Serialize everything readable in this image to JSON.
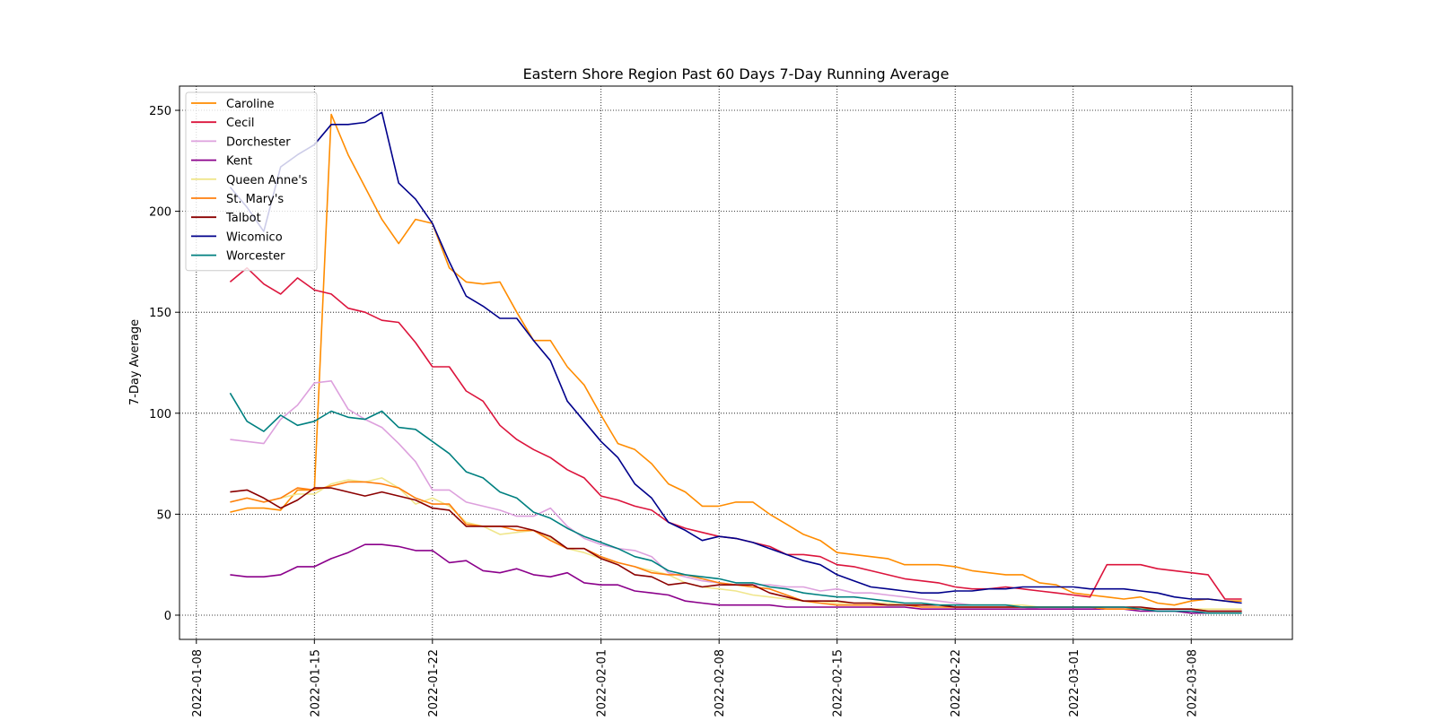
{
  "chart_data": {
    "type": "line",
    "title": "Eastern Shore Region Past 60 Days 7-Day Running Average",
    "xlabel": "",
    "ylabel": "7-Day Average",
    "x_start": "2022-01-10",
    "x_end": "2022-03-10",
    "xlim": [
      "2022-01-07",
      "2022-03-14"
    ],
    "ylim": [
      -12,
      262
    ],
    "xticks": [
      "2022-01-08",
      "2022-01-15",
      "2022-01-22",
      "2022-02-01",
      "2022-02-08",
      "2022-02-15",
      "2022-02-22",
      "2022-03-01",
      "2022-03-08"
    ],
    "yticks": [
      0,
      50,
      100,
      150,
      200,
      250
    ],
    "grid": "dotted",
    "legend_position": "top-left",
    "series": [
      {
        "name": "Caroline",
        "color": "#ff8c00",
        "values": [
          51,
          53,
          53,
          52,
          62,
          62,
          248,
          228,
          212,
          196,
          184,
          196,
          194,
          172,
          165,
          164,
          165,
          150,
          136,
          136,
          123,
          114,
          99,
          85,
          82,
          75,
          65,
          61,
          54,
          54,
          56,
          56,
          50,
          45,
          40,
          37,
          31,
          30,
          29,
          28,
          25,
          25,
          25,
          24,
          22,
          21,
          20,
          20,
          16,
          15,
          11,
          10,
          9,
          8,
          9,
          6,
          5,
          7,
          8,
          7,
          7
        ]
      },
      {
        "name": "Cecil",
        "color": "#dc143c",
        "values": [
          165,
          172,
          164,
          159,
          167,
          161,
          159,
          152,
          150,
          146,
          145,
          135,
          123,
          123,
          111,
          106,
          94,
          87,
          82,
          78,
          72,
          68,
          59,
          57,
          54,
          52,
          46,
          43,
          41,
          39,
          38,
          36,
          34,
          30,
          30,
          29,
          25,
          24,
          22,
          20,
          18,
          17,
          16,
          14,
          13,
          13,
          14,
          13,
          12,
          11,
          10,
          9,
          25,
          25,
          25,
          23,
          22,
          21,
          20,
          8,
          8
        ]
      },
      {
        "name": "Dorchester",
        "color": "#dda0dd",
        "values": [
          87,
          86,
          85,
          97,
          104,
          115,
          116,
          102,
          97,
          93,
          85,
          76,
          62,
          62,
          56,
          54,
          52,
          49,
          49,
          53,
          44,
          38,
          35,
          33,
          32,
          29,
          21,
          19,
          17,
          16,
          15,
          15,
          15,
          14,
          14,
          12,
          13,
          11,
          11,
          10,
          9,
          8,
          7,
          6,
          5,
          5,
          5,
          4,
          3,
          3,
          3,
          3,
          3,
          3,
          3,
          2,
          2,
          2,
          2,
          2,
          2
        ]
      },
      {
        "name": "Kent",
        "color": "#8b008b",
        "values": [
          20,
          19,
          19,
          20,
          24,
          24,
          28,
          31,
          35,
          35,
          34,
          32,
          32,
          26,
          27,
          22,
          21,
          23,
          20,
          19,
          21,
          16,
          15,
          15,
          12,
          11,
          10,
          7,
          6,
          5,
          5,
          5,
          5,
          4,
          4,
          4,
          4,
          4,
          4,
          4,
          4,
          3,
          3,
          3,
          3,
          3,
          3,
          3,
          3,
          3,
          3,
          3,
          3,
          3,
          2,
          2,
          2,
          1,
          1,
          1,
          1
        ]
      },
      {
        "name": "Queen Anne's",
        "color": "#f0e68c",
        "values": [
          56,
          58,
          56,
          58,
          60,
          60,
          65,
          67,
          66,
          68,
          63,
          55,
          58,
          54,
          46,
          44,
          40,
          41,
          42,
          38,
          33,
          31,
          28,
          26,
          24,
          22,
          20,
          16,
          14,
          13,
          12,
          10,
          9,
          8,
          7,
          7,
          6,
          6,
          6,
          6,
          5,
          5,
          5,
          5,
          5,
          5,
          5,
          5,
          4,
          4,
          4,
          4,
          3,
          3,
          3,
          3,
          3,
          3,
          3,
          3,
          3
        ]
      },
      {
        "name": "St. Mary's",
        "color": "#ff7f0e",
        "values": [
          56,
          58,
          56,
          58,
          63,
          62,
          64,
          66,
          66,
          65,
          63,
          58,
          55,
          55,
          45,
          44,
          44,
          42,
          42,
          37,
          33,
          33,
          29,
          26,
          24,
          21,
          20,
          20,
          18,
          16,
          15,
          14,
          13,
          10,
          7,
          6,
          5,
          5,
          5,
          5,
          5,
          4,
          4,
          4,
          4,
          4,
          4,
          4,
          4,
          4,
          4,
          4,
          3,
          3,
          3,
          3,
          3,
          3,
          2,
          2,
          2
        ]
      },
      {
        "name": "Talbot",
        "color": "#8b0000",
        "values": [
          61,
          62,
          58,
          53,
          57,
          63,
          63,
          61,
          59,
          61,
          59,
          57,
          53,
          52,
          44,
          44,
          44,
          44,
          42,
          39,
          33,
          33,
          28,
          25,
          20,
          19,
          15,
          16,
          14,
          15,
          15,
          15,
          11,
          9,
          7,
          7,
          7,
          6,
          6,
          5,
          5,
          5,
          5,
          4,
          4,
          4,
          4,
          4,
          4,
          4,
          4,
          4,
          4,
          4,
          4,
          3,
          3,
          3,
          2,
          2,
          2
        ]
      },
      {
        "name": "Wicomico",
        "color": "#00008b",
        "values": [
          212,
          202,
          190,
          222,
          228,
          233,
          243,
          243,
          244,
          249,
          214,
          206,
          194,
          175,
          158,
          153,
          147,
          147,
          136,
          126,
          106,
          96,
          86,
          78,
          65,
          58,
          46,
          42,
          37,
          39,
          38,
          36,
          33,
          30,
          27,
          25,
          20,
          17,
          14,
          13,
          12,
          11,
          11,
          12,
          12,
          13,
          13,
          14,
          14,
          14,
          14,
          13,
          13,
          13,
          12,
          11,
          9,
          8,
          8,
          7,
          6
        ]
      },
      {
        "name": "Worcester",
        "color": "#008080",
        "values": [
          110,
          96,
          91,
          99,
          94,
          96,
          101,
          98,
          97,
          101,
          93,
          92,
          86,
          80,
          71,
          68,
          61,
          58,
          51,
          48,
          43,
          39,
          36,
          33,
          29,
          27,
          22,
          20,
          19,
          18,
          16,
          16,
          14,
          13,
          11,
          10,
          9,
          9,
          8,
          7,
          6,
          6,
          5,
          5,
          5,
          5,
          5,
          4,
          4,
          4,
          4,
          4,
          4,
          4,
          3,
          2,
          2,
          2,
          1,
          1,
          1
        ]
      }
    ]
  }
}
